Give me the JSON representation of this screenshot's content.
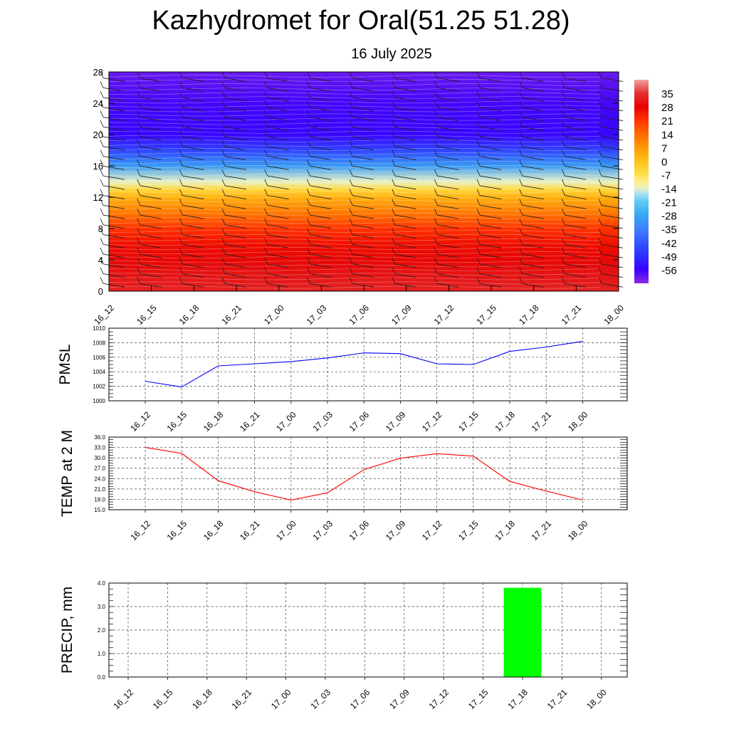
{
  "title": "Kazhydromet for Oral(51.25 51.28)",
  "subtitle": "16 July 2025",
  "chart_data": [
    {
      "type": "heatmap",
      "x_ticks": [
        "16_12",
        "16_15",
        "16_18",
        "16_21",
        "17_00",
        "17_03",
        "17_06",
        "17_09",
        "17_12",
        "17_15",
        "17_18",
        "17_21",
        "18_00"
      ],
      "y_ticks": [
        "0",
        "4",
        "8",
        "12",
        "16",
        "20",
        "24",
        "28"
      ],
      "ylim": [
        0,
        28
      ],
      "colorbar_labels": [
        "35",
        "28",
        "21",
        "14",
        "7",
        "0",
        "-7",
        "-14",
        "-21",
        "-28",
        "-35",
        "-42",
        "-49",
        "-56"
      ],
      "colorbar_range": [
        -63,
        42
      ],
      "grid": false,
      "legend": "right",
      "profile": [
        {
          "h": 0,
          "v": 33
        },
        {
          "h": 2,
          "v": 31
        },
        {
          "h": 4,
          "v": 29
        },
        {
          "h": 6,
          "v": 26
        },
        {
          "h": 8,
          "v": 21
        },
        {
          "h": 10,
          "v": 12
        },
        {
          "h": 12,
          "v": 3
        },
        {
          "h": 13,
          "v": -5
        },
        {
          "h": 14,
          "v": -14
        },
        {
          "h": 16,
          "v": -30
        },
        {
          "h": 18,
          "v": -45
        },
        {
          "h": 20,
          "v": -55
        },
        {
          "h": 24,
          "v": -57
        },
        {
          "h": 28,
          "v": -60
        }
      ]
    },
    {
      "type": "line",
      "ylabel": "PMSL",
      "x": [
        "16_12",
        "16_15",
        "16_18",
        "16_21",
        "17_00",
        "17_03",
        "17_06",
        "17_09",
        "17_12",
        "17_15",
        "17_18",
        "17_21",
        "18_00"
      ],
      "values": [
        1002.7,
        1001.9,
        1004.8,
        1005.1,
        1005.4,
        1005.9,
        1006.6,
        1006.5,
        1005.1,
        1005.0,
        1006.8,
        1007.4,
        1008.2
      ],
      "ylim": [
        1000,
        1010
      ],
      "y_ticks": [
        "1000",
        "1002",
        "1004",
        "1006",
        "1008",
        "1010"
      ],
      "color": "#0000ff",
      "grid": true
    },
    {
      "type": "line",
      "ylabel": "TEMP at 2 M",
      "x": [
        "16_12",
        "16_15",
        "16_18",
        "16_21",
        "17_00",
        "17_03",
        "17_06",
        "17_09",
        "17_12",
        "17_15",
        "17_18",
        "17_21",
        "18_00"
      ],
      "values": [
        33.0,
        31.3,
        23.4,
        20.2,
        17.8,
        19.9,
        26.6,
        29.9,
        31.2,
        30.5,
        23.2,
        20.4,
        17.8
      ],
      "ylim": [
        15,
        36
      ],
      "y_ticks": [
        "15.0",
        "18.0",
        "21.0",
        "24.0",
        "27.0",
        "30.0",
        "33.0",
        "36.0"
      ],
      "color": "#ff0000",
      "grid": true
    },
    {
      "type": "bar",
      "ylabel": "PRECIP, mm",
      "categories": [
        "16_12",
        "16_15",
        "16_18",
        "16_21",
        "17_00",
        "17_03",
        "17_06",
        "17_09",
        "17_12",
        "17_15",
        "17_18",
        "17_21",
        "18_00"
      ],
      "values": [
        0,
        0,
        0,
        0,
        0,
        0,
        0,
        0,
        0,
        0,
        3.8,
        0,
        0
      ],
      "ylim": [
        0,
        4
      ],
      "y_ticks": [
        "0.0",
        "1.0",
        "2.0",
        "3.0",
        "4.0"
      ],
      "color": "#00ff00",
      "grid": true
    }
  ]
}
